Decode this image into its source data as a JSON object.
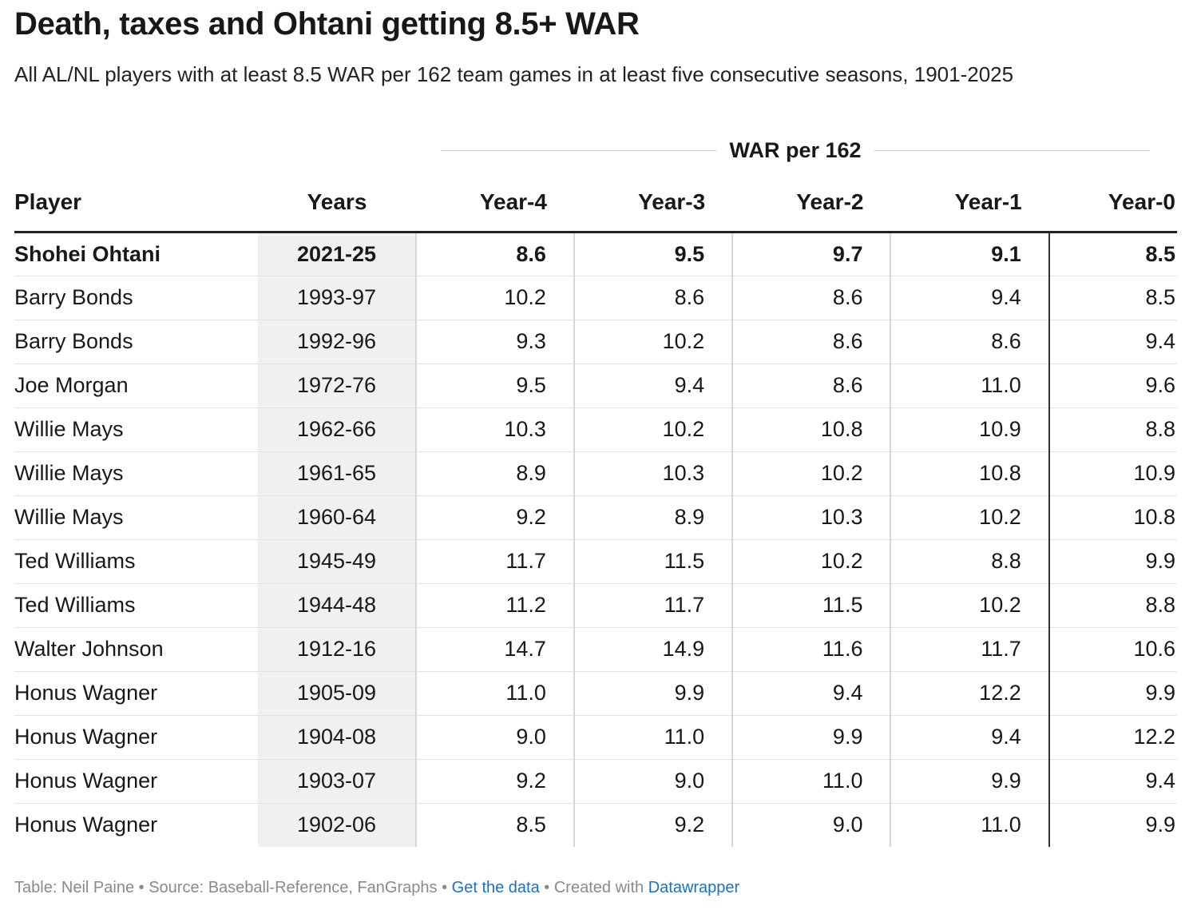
{
  "title": "Death, taxes and Ohtani getting 8.5+ WAR",
  "subtitle": "All AL/NL players with at least 8.5 WAR per 162 team games in at least five consecutive seasons, 1901-2025",
  "group_header": "WAR per 162",
  "columns": {
    "player": "Player",
    "years": "Years",
    "y4": "Year-4",
    "y3": "Year-3",
    "y2": "Year-2",
    "y1": "Year-1",
    "y0": "Year-0"
  },
  "rows": [
    {
      "player": "Shohei Ohtani",
      "years": "2021-25",
      "y4": "8.6",
      "y3": "9.5",
      "y2": "9.7",
      "y1": "9.1",
      "y0": "8.5"
    },
    {
      "player": "Barry Bonds",
      "years": "1993-97",
      "y4": "10.2",
      "y3": "8.6",
      "y2": "8.6",
      "y1": "9.4",
      "y0": "8.5"
    },
    {
      "player": "Barry Bonds",
      "years": "1992-96",
      "y4": "9.3",
      "y3": "10.2",
      "y2": "8.6",
      "y1": "8.6",
      "y0": "9.4"
    },
    {
      "player": "Joe Morgan",
      "years": "1972-76",
      "y4": "9.5",
      "y3": "9.4",
      "y2": "8.6",
      "y1": "11.0",
      "y0": "9.6"
    },
    {
      "player": "Willie Mays",
      "years": "1962-66",
      "y4": "10.3",
      "y3": "10.2",
      "y2": "10.8",
      "y1": "10.9",
      "y0": "8.8"
    },
    {
      "player": "Willie Mays",
      "years": "1961-65",
      "y4": "8.9",
      "y3": "10.3",
      "y2": "10.2",
      "y1": "10.8",
      "y0": "10.9"
    },
    {
      "player": "Willie Mays",
      "years": "1960-64",
      "y4": "9.2",
      "y3": "8.9",
      "y2": "10.3",
      "y1": "10.2",
      "y0": "10.8"
    },
    {
      "player": "Ted Williams",
      "years": "1945-49",
      "y4": "11.7",
      "y3": "11.5",
      "y2": "10.2",
      "y1": "8.8",
      "y0": "9.9"
    },
    {
      "player": "Ted Williams",
      "years": "1944-48",
      "y4": "11.2",
      "y3": "11.7",
      "y2": "11.5",
      "y1": "10.2",
      "y0": "8.8"
    },
    {
      "player": "Walter Johnson",
      "years": "1912-16",
      "y4": "14.7",
      "y3": "14.9",
      "y2": "11.6",
      "y1": "11.7",
      "y0": "10.6"
    },
    {
      "player": "Honus Wagner",
      "years": "1905-09",
      "y4": "11.0",
      "y3": "9.9",
      "y2": "9.4",
      "y1": "12.2",
      "y0": "9.9"
    },
    {
      "player": "Honus Wagner",
      "years": "1904-08",
      "y4": "9.0",
      "y3": "11.0",
      "y2": "9.9",
      "y1": "9.4",
      "y0": "12.2"
    },
    {
      "player": "Honus Wagner",
      "years": "1903-07",
      "y4": "9.2",
      "y3": "9.0",
      "y2": "11.0",
      "y1": "9.9",
      "y0": "9.4"
    },
    {
      "player": "Honus Wagner",
      "years": "1902-06",
      "y4": "8.5",
      "y3": "9.2",
      "y2": "9.0",
      "y1": "11.0",
      "y0": "9.9"
    }
  ],
  "footer": {
    "table_credit": "Table: Neil Paine",
    "separator": " • ",
    "source": "Source: Baseball-Reference, FanGraphs",
    "get_data": "Get the data",
    "created_with": "Created with ",
    "datawrapper": "Datawrapper"
  },
  "colors": {
    "link": "#1a73b9",
    "highlight_column_bg": "#f0f0f0",
    "footer_text": "#8a8a8a"
  },
  "chart_data": {
    "type": "table",
    "title": "Death, taxes and Ohtani getting 8.5+ WAR",
    "subtitle": "All AL/NL players with at least 8.5 WAR per 162 team games in at least five consecutive seasons, 1901-2025",
    "group_header": "WAR per 162",
    "columns": [
      "Player",
      "Years",
      "Year-4",
      "Year-3",
      "Year-2",
      "Year-1",
      "Year-0"
    ],
    "highlighted_row": "Shohei Ohtani"
  }
}
